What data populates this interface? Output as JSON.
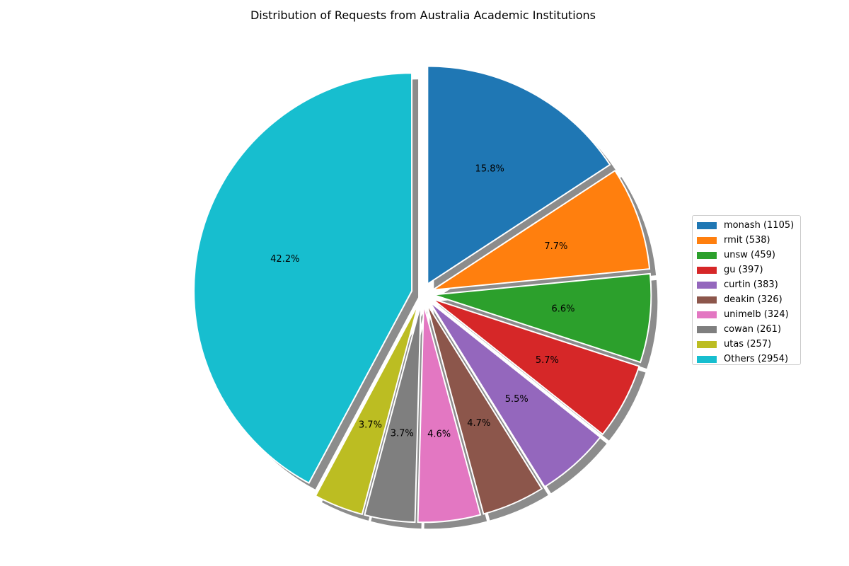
{
  "chart_data": {
    "type": "pie",
    "title": "Distribution of Requests from Australia Academic Institutions",
    "categories": [
      "monash (1105)",
      "rmit (538)",
      "unsw (459)",
      "gu (397)",
      "curtin (383)",
      "deakin (326)",
      "unimelb (324)",
      "cowan (261)",
      "utas (257)",
      "Others (2954)"
    ],
    "values": [
      1105,
      538,
      459,
      397,
      383,
      326,
      324,
      261,
      257,
      2954
    ],
    "percent_labels": [
      "15.8%",
      "7.7%",
      "6.6%",
      "5.7%",
      "5.5%",
      "4.7%",
      "4.6%",
      "3.7%",
      "3.7%",
      "42.2%"
    ],
    "colors": [
      "#1f77b4",
      "#ff7f0e",
      "#2ca02c",
      "#d62728",
      "#9467bd",
      "#8c564b",
      "#e377c2",
      "#7f7f7f",
      "#bcbd22",
      "#17becf"
    ],
    "shadow": true,
    "legend_position": "right"
  }
}
